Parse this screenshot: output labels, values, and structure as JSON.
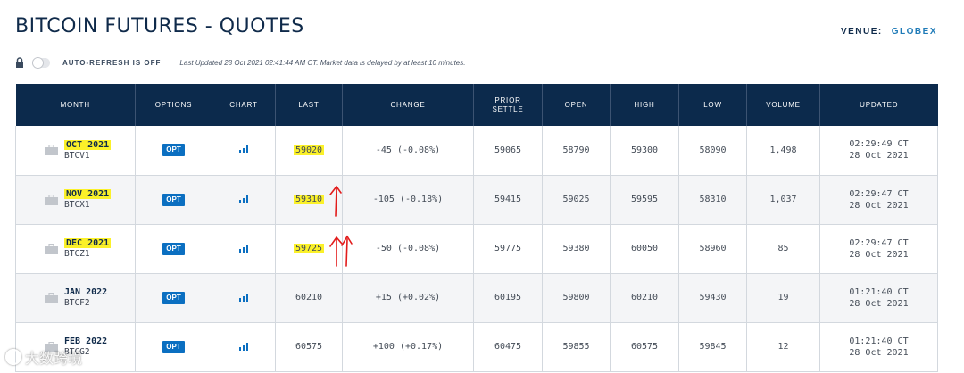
{
  "page": {
    "title": "BITCOIN FUTURES - QUOTES",
    "venue_label": "VENUE:",
    "venue_value": "GLOBEX"
  },
  "refresh": {
    "toggle_on": false,
    "label": "AUTO-REFRESH IS OFF",
    "note": "Last Updated 28 Oct 2021 02:41:44 AM CT.  Market data is delayed by at least 10 minutes."
  },
  "table": {
    "columns": [
      "MONTH",
      "OPTIONS",
      "CHART",
      "LAST",
      "CHANGE",
      "PRIOR SETTLE",
      "OPEN",
      "HIGH",
      "LOW",
      "VOLUME",
      "UPDATED"
    ],
    "rows": [
      {
        "month": "OCT 2021",
        "code": "BTCV1",
        "options": "OPT",
        "last": "59020",
        "change": "-45 (-0.08%)",
        "prior": "59065",
        "open": "58790",
        "high": "59300",
        "low": "58090",
        "volume": "1,498",
        "time": "02:29:49 CT",
        "date": "28 Oct 2021"
      },
      {
        "month": "NOV 2021",
        "code": "BTCX1",
        "options": "OPT",
        "last": "59310",
        "change": "-105 (-0.18%)",
        "prior": "59415",
        "open": "59025",
        "high": "59595",
        "low": "58310",
        "volume": "1,037",
        "time": "02:29:47 CT",
        "date": "28 Oct 2021"
      },
      {
        "month": "DEC 2021",
        "code": "BTCZ1",
        "options": "OPT",
        "last": "59725",
        "change": "-50 (-0.08%)",
        "prior": "59775",
        "open": "59380",
        "high": "60050",
        "low": "58960",
        "volume": "85",
        "time": "02:29:47 CT",
        "date": "28 Oct 2021"
      },
      {
        "month": "JAN 2022",
        "code": "BTCF2",
        "options": "OPT",
        "last": "60210",
        "change": "+15 (+0.02%)",
        "prior": "60195",
        "open": "59800",
        "high": "60210",
        "low": "59430",
        "volume": "19",
        "time": "01:21:40 CT",
        "date": "28 Oct 2021"
      },
      {
        "month": "FEB 2022",
        "code": "BTCG2",
        "options": "OPT",
        "last": "60575",
        "change": "+100 (+0.17%)",
        "prior": "60475",
        "open": "59855",
        "high": "60575",
        "low": "59845",
        "volume": "12",
        "time": "01:21:40 CT",
        "date": "28 Oct 2021"
      }
    ]
  },
  "watermark": {
    "text": "大数跨境"
  },
  "colors": {
    "header_bg": "#0c2a4c",
    "opt_badge": "#0b6fc1",
    "negative": "#d92b2b",
    "positive": "#1f8b2a",
    "highlight": "#fbf129",
    "venue_link": "#1f7bb8"
  },
  "icons": [
    "lock-icon",
    "briefcase-icon",
    "bar-chart-icon"
  ]
}
